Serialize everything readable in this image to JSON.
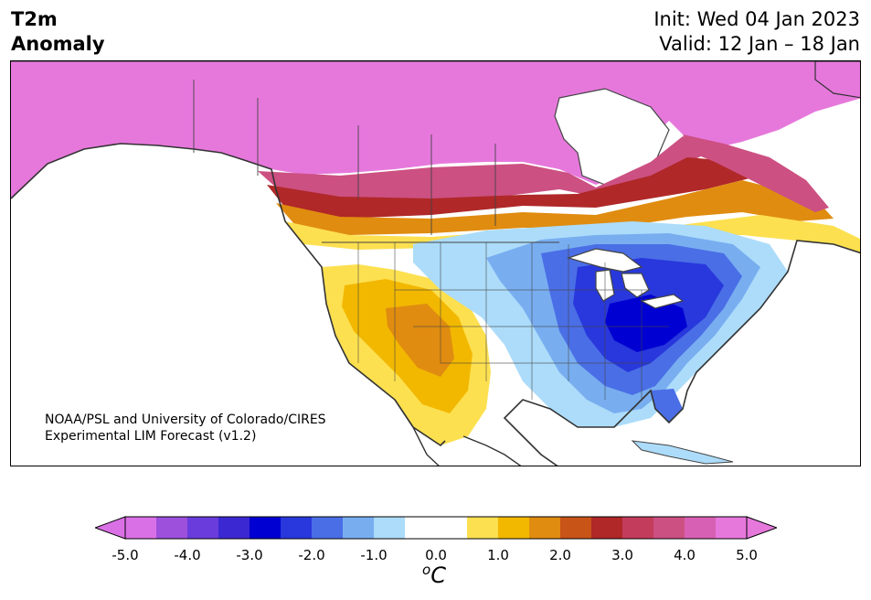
{
  "title": {
    "line1": "T2m",
    "line2": "Anomaly"
  },
  "info": {
    "init": "Init: Wed 04 Jan 2023",
    "valid": "Valid: 12 Jan – 18 Jan"
  },
  "credit": {
    "line1": "NOAA/PSL and University of Colorado/CIRES",
    "line2": "Experimental LIM Forecast (v1.2)"
  },
  "colorbar": {
    "unit_prefix": "o",
    "unit": "C",
    "ticks": [
      "-5.0",
      "-4.0",
      "-3.0",
      "-2.0",
      "-1.0",
      "0.0",
      "1.0",
      "2.0",
      "3.0",
      "4.0",
      "5.0"
    ],
    "colors": [
      "#da70e6",
      "#9c50dc",
      "#6a3cdc",
      "#3c28d2",
      "#0000d2",
      "#2838dc",
      "#4a6ee6",
      "#78aef0",
      "#acdcfa",
      "#ffffff",
      "#ffffff",
      "#fde050",
      "#f2b800",
      "#e08c10",
      "#c85418",
      "#b02828",
      "#c43c5c",
      "#cc5082",
      "#d860b4",
      "#e678dc"
    ]
  }
}
